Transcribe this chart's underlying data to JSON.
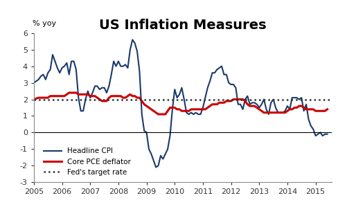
{
  "title": "US Inflation Measures",
  "ylabel": "% yoy",
  "ylim": [
    -3,
    6
  ],
  "yticks": [
    -3,
    -2,
    -1,
    0,
    1,
    2,
    3,
    4,
    5,
    6
  ],
  "fed_target": 2.0,
  "background_color": "#ffffff",
  "title_fontsize": 14,
  "legend_labels": [
    "Headline CPI",
    "Core PCE deflator",
    "Fed's target rate"
  ],
  "cpi_color": "#1a3a6b",
  "pce_color": "#cc0000",
  "fed_color": "#333333",
  "x_min": 2005.0,
  "x_max": 2015.58,
  "xtick_years": [
    2005,
    2006,
    2007,
    2008,
    2009,
    2010,
    2011,
    2012,
    2013,
    2014,
    2015
  ],
  "headline_cpi": {
    "dates": [
      2005.0,
      2005.083,
      2005.167,
      2005.25,
      2005.333,
      2005.417,
      2005.5,
      2005.583,
      2005.667,
      2005.75,
      2005.833,
      2005.917,
      2006.0,
      2006.083,
      2006.167,
      2006.25,
      2006.333,
      2006.417,
      2006.5,
      2006.583,
      2006.667,
      2006.75,
      2006.833,
      2006.917,
      2007.0,
      2007.083,
      2007.167,
      2007.25,
      2007.333,
      2007.417,
      2007.5,
      2007.583,
      2007.667,
      2007.75,
      2007.833,
      2007.917,
      2008.0,
      2008.083,
      2008.167,
      2008.25,
      2008.333,
      2008.417,
      2008.5,
      2008.583,
      2008.667,
      2008.75,
      2008.833,
      2008.917,
      2009.0,
      2009.083,
      2009.167,
      2009.25,
      2009.333,
      2009.417,
      2009.5,
      2009.583,
      2009.667,
      2009.75,
      2009.833,
      2009.917,
      2010.0,
      2010.083,
      2010.167,
      2010.25,
      2010.333,
      2010.417,
      2010.5,
      2010.583,
      2010.667,
      2010.75,
      2010.833,
      2010.917,
      2011.0,
      2011.083,
      2011.167,
      2011.25,
      2011.333,
      2011.417,
      2011.5,
      2011.583,
      2011.667,
      2011.75,
      2011.833,
      2011.917,
      2012.0,
      2012.083,
      2012.167,
      2012.25,
      2012.333,
      2012.417,
      2012.5,
      2012.583,
      2012.667,
      2012.75,
      2012.833,
      2012.917,
      2013.0,
      2013.083,
      2013.167,
      2013.25,
      2013.333,
      2013.417,
      2013.5,
      2013.583,
      2013.667,
      2013.75,
      2013.833,
      2013.917,
      2014.0,
      2014.083,
      2014.167,
      2014.25,
      2014.333,
      2014.417,
      2014.5,
      2014.583,
      2014.667,
      2014.75,
      2014.833,
      2014.917,
      2015.0,
      2015.083,
      2015.167,
      2015.25,
      2015.333,
      2015.417
    ],
    "values": [
      3.0,
      3.1,
      3.2,
      3.4,
      3.5,
      3.2,
      3.6,
      3.8,
      4.7,
      4.3,
      3.9,
      3.6,
      3.9,
      4.0,
      4.2,
      3.5,
      4.3,
      4.3,
      3.8,
      2.1,
      1.3,
      1.3,
      2.0,
      2.5,
      2.1,
      2.4,
      2.8,
      2.8,
      2.6,
      2.7,
      2.7,
      2.4,
      2.8,
      3.5,
      4.3,
      4.0,
      4.3,
      4.0,
      4.0,
      4.1,
      3.9,
      5.0,
      5.6,
      5.4,
      4.9,
      3.7,
      1.1,
      0.1,
      0.0,
      -1.0,
      -1.3,
      -1.7,
      -2.1,
      -2.0,
      -1.4,
      -1.6,
      -1.3,
      -1.0,
      -0.2,
      1.4,
      2.6,
      2.1,
      2.3,
      2.7,
      2.0,
      1.2,
      1.1,
      1.2,
      1.1,
      1.2,
      1.1,
      1.1,
      1.5,
      2.1,
      2.7,
      3.1,
      3.6,
      3.6,
      3.8,
      3.9,
      4.0,
      3.5,
      3.5,
      3.0,
      2.9,
      2.9,
      2.7,
      1.7,
      1.7,
      1.4,
      2.0,
      2.2,
      1.7,
      1.8,
      1.8,
      1.7,
      1.5,
      1.7,
      2.0,
      1.4,
      1.1,
      1.8,
      2.0,
      1.5,
      1.2,
      1.2,
      1.2,
      1.3,
      1.6,
      1.4,
      2.1,
      2.1,
      2.1,
      2.0,
      2.1,
      1.3,
      1.7,
      0.8,
      0.4,
      0.2,
      -0.2,
      -0.1,
      0.0,
      -0.2,
      -0.1,
      -0.1
    ]
  },
  "core_pce": {
    "dates": [
      2005.0,
      2005.083,
      2005.167,
      2005.25,
      2005.333,
      2005.417,
      2005.5,
      2005.583,
      2005.667,
      2005.75,
      2005.833,
      2005.917,
      2006.0,
      2006.083,
      2006.167,
      2006.25,
      2006.333,
      2006.417,
      2006.5,
      2006.583,
      2006.667,
      2006.75,
      2006.833,
      2006.917,
      2007.0,
      2007.083,
      2007.167,
      2007.25,
      2007.333,
      2007.417,
      2007.5,
      2007.583,
      2007.667,
      2007.75,
      2007.833,
      2007.917,
      2008.0,
      2008.083,
      2008.167,
      2008.25,
      2008.333,
      2008.417,
      2008.5,
      2008.583,
      2008.667,
      2008.75,
      2008.833,
      2008.917,
      2009.0,
      2009.083,
      2009.167,
      2009.25,
      2009.333,
      2009.417,
      2009.5,
      2009.583,
      2009.667,
      2009.75,
      2009.833,
      2009.917,
      2010.0,
      2010.083,
      2010.167,
      2010.25,
      2010.333,
      2010.417,
      2010.5,
      2010.583,
      2010.667,
      2010.75,
      2010.833,
      2010.917,
      2011.0,
      2011.083,
      2011.167,
      2011.25,
      2011.333,
      2011.417,
      2011.5,
      2011.583,
      2011.667,
      2011.75,
      2011.833,
      2011.917,
      2012.0,
      2012.083,
      2012.167,
      2012.25,
      2012.333,
      2012.417,
      2012.5,
      2012.583,
      2012.667,
      2012.75,
      2012.833,
      2012.917,
      2013.0,
      2013.083,
      2013.167,
      2013.25,
      2013.333,
      2013.417,
      2013.5,
      2013.583,
      2013.667,
      2013.75,
      2013.833,
      2013.917,
      2014.0,
      2014.083,
      2014.167,
      2014.25,
      2014.333,
      2014.417,
      2014.5,
      2014.583,
      2014.667,
      2014.75,
      2014.833,
      2014.917,
      2015.0,
      2015.083,
      2015.167,
      2015.25,
      2015.333,
      2015.417
    ],
    "values": [
      2.0,
      2.05,
      2.1,
      2.1,
      2.1,
      2.1,
      2.1,
      2.2,
      2.2,
      2.2,
      2.2,
      2.2,
      2.2,
      2.2,
      2.3,
      2.4,
      2.4,
      2.4,
      2.4,
      2.3,
      2.3,
      2.3,
      2.3,
      2.3,
      2.2,
      2.2,
      2.2,
      2.1,
      2.0,
      1.9,
      1.9,
      1.9,
      2.1,
      2.2,
      2.2,
      2.2,
      2.2,
      2.2,
      2.1,
      2.1,
      2.2,
      2.3,
      2.2,
      2.2,
      2.1,
      2.1,
      1.9,
      1.7,
      1.6,
      1.5,
      1.4,
      1.3,
      1.2,
      1.1,
      1.1,
      1.1,
      1.1,
      1.3,
      1.5,
      1.5,
      1.5,
      1.4,
      1.4,
      1.3,
      1.3,
      1.3,
      1.3,
      1.4,
      1.4,
      1.4,
      1.4,
      1.4,
      1.4,
      1.4,
      1.5,
      1.6,
      1.7,
      1.7,
      1.7,
      1.8,
      1.8,
      1.8,
      1.9,
      1.9,
      1.9,
      2.0,
      2.0,
      2.0,
      2.0,
      2.0,
      1.9,
      1.7,
      1.6,
      1.6,
      1.6,
      1.5,
      1.4,
      1.3,
      1.2,
      1.2,
      1.2,
      1.2,
      1.2,
      1.2,
      1.2,
      1.2,
      1.2,
      1.2,
      1.3,
      1.4,
      1.4,
      1.5,
      1.5,
      1.6,
      1.6,
      1.5,
      1.4,
      1.4,
      1.4,
      1.4,
      1.3,
      1.3,
      1.3,
      1.3,
      1.3,
      1.4
    ]
  }
}
